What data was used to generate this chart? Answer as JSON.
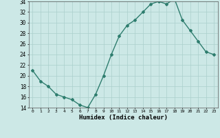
{
  "x": [
    0,
    1,
    2,
    3,
    4,
    5,
    6,
    7,
    8,
    9,
    10,
    11,
    12,
    13,
    14,
    15,
    16,
    17,
    18,
    19,
    20,
    21,
    22,
    23
  ],
  "y": [
    21,
    19,
    18,
    16.5,
    16,
    15.5,
    14.5,
    14,
    16.5,
    20,
    24,
    27.5,
    29.5,
    30.5,
    32,
    33.5,
    34,
    33.5,
    34.5,
    30.5,
    28.5,
    26.5,
    24.5,
    24
  ],
  "xlabel": "Humidex (Indice chaleur)",
  "ylim": [
    14,
    34
  ],
  "xlim": [
    -0.5,
    23.5
  ],
  "yticks": [
    14,
    16,
    18,
    20,
    22,
    24,
    26,
    28,
    30,
    32,
    34
  ],
  "xticks": [
    0,
    1,
    2,
    3,
    4,
    5,
    6,
    7,
    8,
    9,
    10,
    11,
    12,
    13,
    14,
    15,
    16,
    17,
    18,
    19,
    20,
    21,
    22,
    23
  ],
  "line_color": "#2e7d6e",
  "marker": "D",
  "markersize": 2,
  "background_color": "#cce8e6",
  "grid_color": "#aacfcc"
}
